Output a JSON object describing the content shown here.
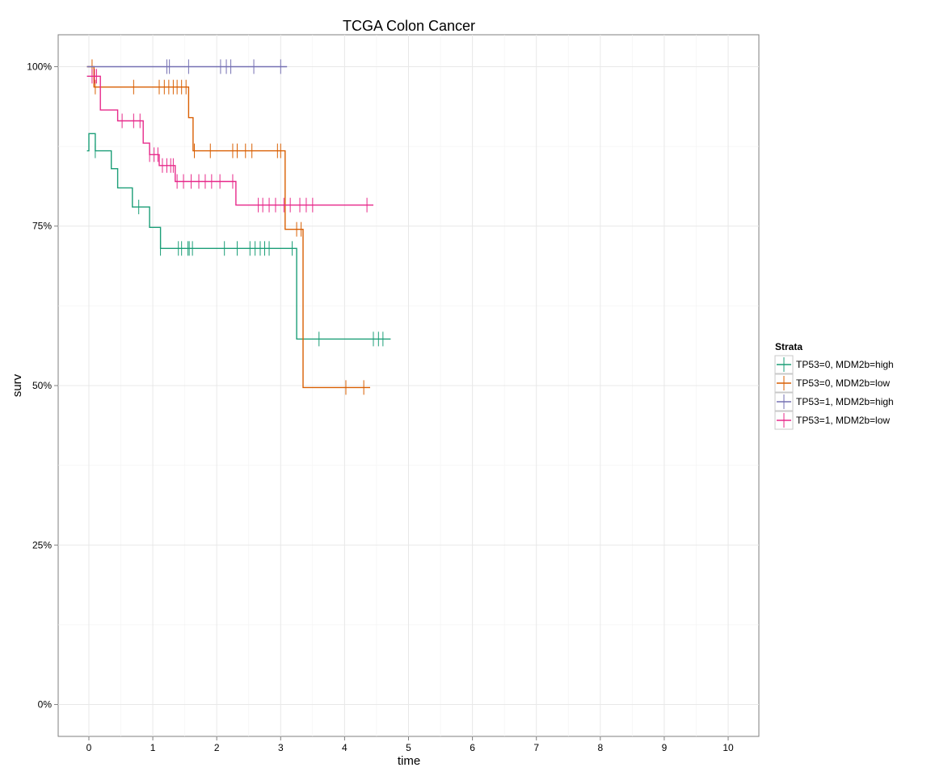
{
  "chart_data": {
    "type": "line",
    "title": "TCGA Colon Cancer",
    "xlabel": "time",
    "ylabel": "surv",
    "xlim": [
      -0.48,
      10.48
    ],
    "ylim": [
      -0.05,
      1.05
    ],
    "x_ticks": [
      0,
      1,
      2,
      3,
      4,
      5,
      6,
      7,
      8,
      9,
      10
    ],
    "x_tick_labels": [
      "0",
      "1",
      "2",
      "3",
      "4",
      "5",
      "6",
      "7",
      "8",
      "9",
      "10"
    ],
    "y_ticks": [
      0,
      0.25,
      0.5,
      0.75,
      1.0
    ],
    "y_tick_labels": [
      "0%",
      "25%",
      "50%",
      "75%",
      "100%"
    ],
    "grid": true,
    "legend_title": "Strata",
    "legend_position": "right",
    "series": [
      {
        "name": "TP53=0, MDM2b=high",
        "color": "#1b9e77",
        "steps": [
          [
            -0.03,
            0.868
          ],
          [
            0.0,
            0.895
          ],
          [
            0.1,
            0.868
          ],
          [
            0.35,
            0.84
          ],
          [
            0.45,
            0.81
          ],
          [
            0.68,
            0.78
          ],
          [
            0.95,
            0.748
          ],
          [
            1.12,
            0.715
          ],
          [
            3.25,
            0.573
          ],
          [
            4.72,
            0.573
          ]
        ],
        "censor_x": [
          0.1,
          0.78,
          1.12,
          1.4,
          1.45,
          1.55,
          1.57,
          1.62,
          2.12,
          2.32,
          2.52,
          2.6,
          2.68,
          2.75,
          2.82,
          3.18,
          3.6,
          4.45,
          4.53,
          4.6
        ]
      },
      {
        "name": "TP53=0, MDM2b=low",
        "color": "#d95f02",
        "steps": [
          [
            -0.03,
            1.0
          ],
          [
            0.08,
            0.968
          ],
          [
            1.56,
            0.92
          ],
          [
            1.63,
            0.868
          ],
          [
            3.07,
            0.745
          ],
          [
            3.35,
            0.497
          ],
          [
            4.4,
            0.497
          ]
        ],
        "censor_x": [
          0.05,
          0.1,
          0.7,
          1.1,
          1.18,
          1.25,
          1.32,
          1.38,
          1.45,
          1.52,
          1.65,
          1.9,
          2.25,
          2.32,
          2.45,
          2.55,
          2.95,
          3.0,
          3.25,
          3.32,
          4.02,
          4.3
        ]
      },
      {
        "name": "TP53=1, MDM2b=high",
        "color": "#7570b3",
        "steps": [
          [
            -0.03,
            1.0
          ],
          [
            3.1,
            1.0
          ]
        ],
        "censor_x": [
          1.22,
          1.26,
          1.56,
          2.06,
          2.15,
          2.22,
          2.58,
          3.0
        ]
      },
      {
        "name": "TP53=1, MDM2b=low",
        "color": "#e7298a",
        "steps": [
          [
            -0.03,
            0.985
          ],
          [
            0.18,
            0.932
          ],
          [
            0.45,
            0.915
          ],
          [
            0.85,
            0.88
          ],
          [
            0.95,
            0.862
          ],
          [
            1.1,
            0.845
          ],
          [
            1.35,
            0.82
          ],
          [
            2.3,
            0.783
          ],
          [
            4.45,
            0.783
          ]
        ],
        "censor_x": [
          0.05,
          0.09,
          0.12,
          0.52,
          0.7,
          0.8,
          0.95,
          1.02,
          1.08,
          1.15,
          1.22,
          1.28,
          1.32,
          1.38,
          1.48,
          1.6,
          1.72,
          1.82,
          1.92,
          2.05,
          2.25,
          2.65,
          2.72,
          2.82,
          2.92,
          3.05,
          3.15,
          3.3,
          3.4,
          3.5,
          4.35
        ]
      }
    ]
  }
}
